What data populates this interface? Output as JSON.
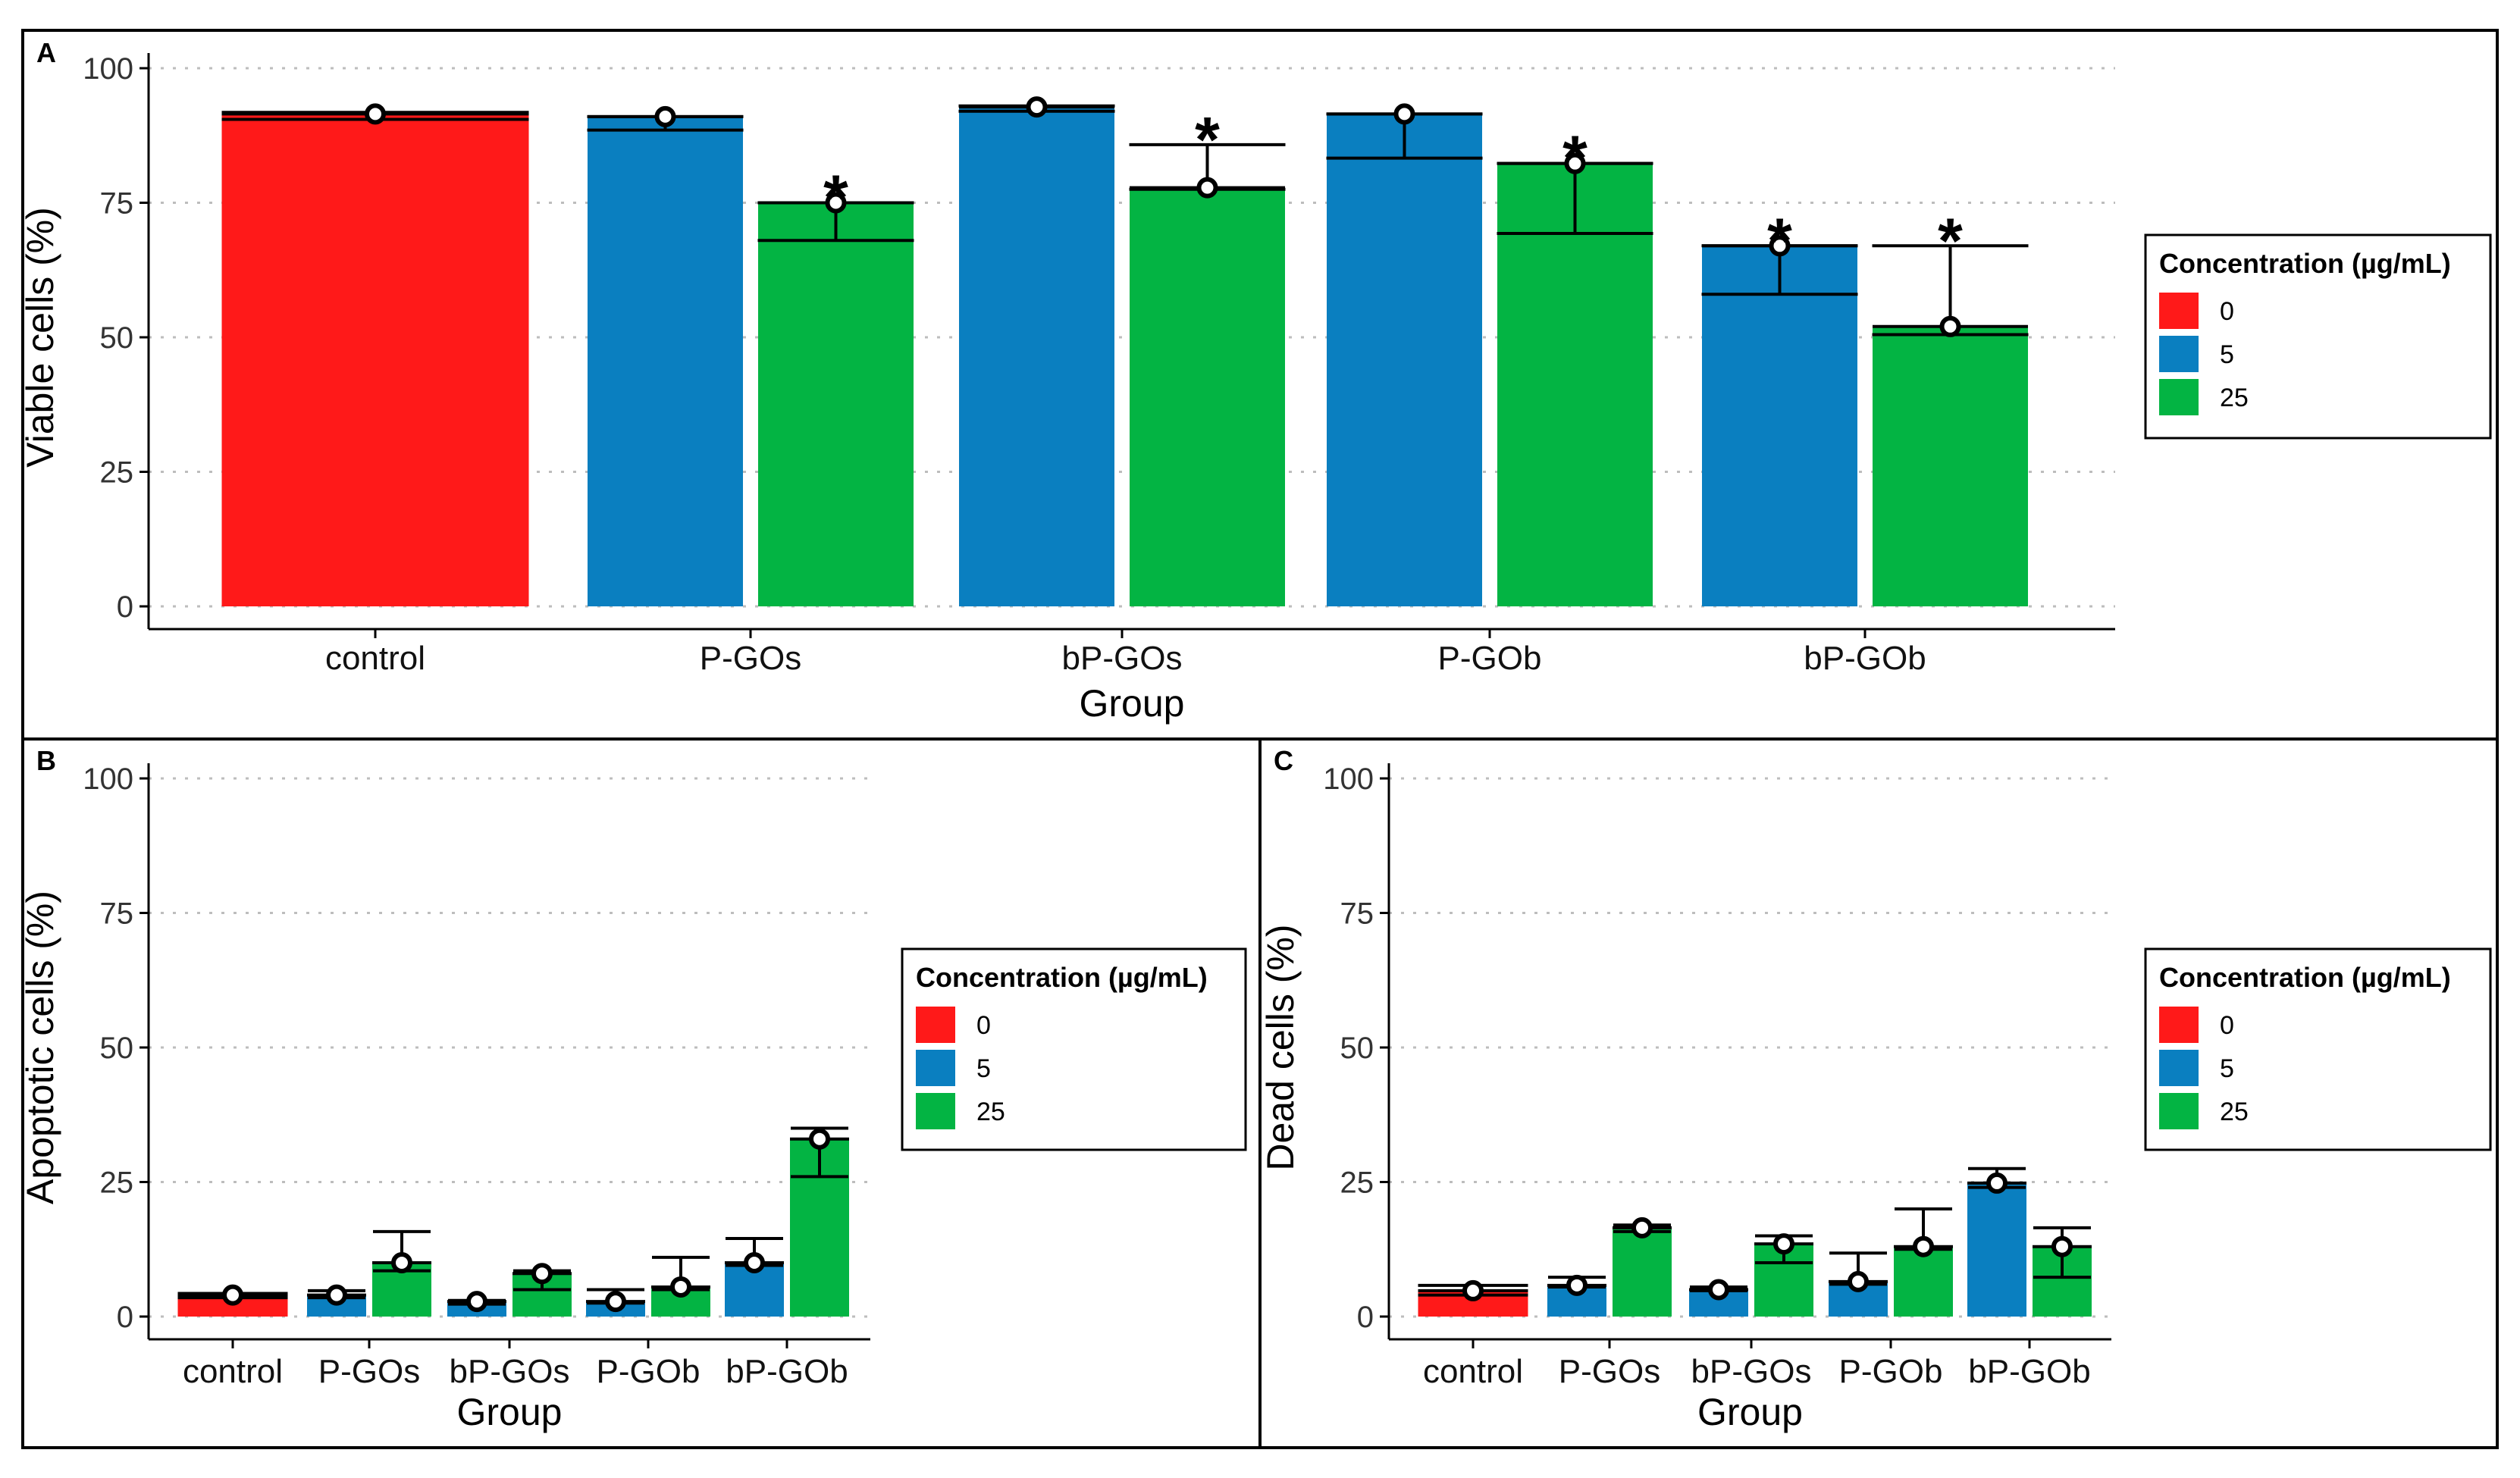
{
  "colors": {
    "0": "#ff1919",
    "5": "#0a7fc0",
    "25": "#03b443"
  },
  "chart_data": [
    {
      "panel": "A",
      "type": "bar",
      "xlabel": "Group",
      "ylabel": "Viable cells (%)",
      "ylim": [
        0,
        100
      ],
      "yticks": [
        0,
        25,
        50,
        75,
        100
      ],
      "grid": true,
      "legend_title": "Concentration (µg/mL)",
      "legend_entries": [
        "0",
        "5",
        "25"
      ],
      "legend_position": "right",
      "groups": [
        {
          "label": "control",
          "bars": [
            {
              "concentration": "0",
              "value": 91.5,
              "point": 91.5,
              "err_low": 90.5,
              "err_high": 91.8,
              "sig": ""
            }
          ]
        },
        {
          "label": "P-GOs",
          "bars": [
            {
              "concentration": "5",
              "value": 91,
              "point": 91,
              "err_low": 88.5,
              "err_high": 91,
              "sig": ""
            },
            {
              "concentration": "25",
              "value": 75,
              "point": 75,
              "err_low": 68,
              "err_high": 75,
              "sig": "*"
            }
          ]
        },
        {
          "label": "bP-GOs",
          "bars": [
            {
              "concentration": "5",
              "value": 92.8,
              "point": 92.8,
              "err_low": 92,
              "err_high": 93,
              "sig": ""
            },
            {
              "concentration": "25",
              "value": 77.8,
              "point": 77.8,
              "err_low": 77.5,
              "err_high": 85.8,
              "sig": "*"
            }
          ]
        },
        {
          "label": "P-GOb",
          "bars": [
            {
              "concentration": "5",
              "value": 91.5,
              "point": 91.5,
              "err_low": 83.3,
              "err_high": 91.5,
              "sig": ""
            },
            {
              "concentration": "25",
              "value": 82.3,
              "point": 82.3,
              "err_low": 69.3,
              "err_high": 82.3,
              "sig": "*"
            }
          ]
        },
        {
          "label": "bP-GOb",
          "bars": [
            {
              "concentration": "5",
              "value": 67,
              "point": 67,
              "err_low": 58,
              "err_high": 67,
              "sig": "*"
            },
            {
              "concentration": "25",
              "value": 52,
              "point": 52,
              "err_low": 50.5,
              "err_high": 67,
              "sig": "*"
            }
          ]
        }
      ]
    },
    {
      "panel": "B",
      "type": "bar",
      "xlabel": "Group",
      "ylabel": "Apoptotic cells (%)",
      "ylim": [
        0,
        100
      ],
      "yticks": [
        0,
        25,
        50,
        75,
        100
      ],
      "grid": true,
      "legend_title": "Concentration (µg/mL)",
      "legend_entries": [
        "0",
        "5",
        "25"
      ],
      "legend_position": "right",
      "groups": [
        {
          "label": "control",
          "bars": [
            {
              "concentration": "0",
              "value": 4,
              "point": 4,
              "err_low": 3.5,
              "err_high": 4.3
            }
          ]
        },
        {
          "label": "P-GOs",
          "bars": [
            {
              "concentration": "5",
              "value": 4,
              "point": 4,
              "err_low": 3.5,
              "err_high": 4.8
            },
            {
              "concentration": "25",
              "value": 10,
              "point": 10,
              "err_low": 8.5,
              "err_high": 15.8
            }
          ]
        },
        {
          "label": "bP-GOs",
          "bars": [
            {
              "concentration": "5",
              "value": 2.8,
              "point": 2.8,
              "err_low": 2.3,
              "err_high": 3
            },
            {
              "concentration": "25",
              "value": 8,
              "point": 8,
              "err_low": 5,
              "err_high": 8.5
            }
          ]
        },
        {
          "label": "P-GOb",
          "bars": [
            {
              "concentration": "5",
              "value": 2.8,
              "point": 2.8,
              "err_low": 2.5,
              "err_high": 5
            },
            {
              "concentration": "25",
              "value": 5.5,
              "point": 5.5,
              "err_low": 5,
              "err_high": 11
            }
          ]
        },
        {
          "label": "bP-GOb",
          "bars": [
            {
              "concentration": "5",
              "value": 10,
              "point": 10,
              "err_low": 9.5,
              "err_high": 14.5
            },
            {
              "concentration": "25",
              "value": 33,
              "point": 33,
              "err_low": 26,
              "err_high": 35
            }
          ]
        }
      ]
    },
    {
      "panel": "C",
      "type": "bar",
      "xlabel": "Group",
      "ylabel": "Dead cells (%)",
      "ylim": [
        0,
        100
      ],
      "yticks": [
        0,
        25,
        50,
        75,
        100
      ],
      "grid": true,
      "legend_title": "Concentration (µg/mL)",
      "legend_entries": [
        "0",
        "5",
        "25"
      ],
      "legend_position": "right",
      "groups": [
        {
          "label": "control",
          "bars": [
            {
              "concentration": "0",
              "value": 4.8,
              "point": 4.8,
              "err_low": 4,
              "err_high": 5.8
            }
          ]
        },
        {
          "label": "P-GOs",
          "bars": [
            {
              "concentration": "5",
              "value": 5.8,
              "point": 5.8,
              "err_low": 5.5,
              "err_high": 7.3
            },
            {
              "concentration": "25",
              "value": 16.5,
              "point": 16.5,
              "err_low": 15.8,
              "err_high": 17
            }
          ]
        },
        {
          "label": "bP-GOs",
          "bars": [
            {
              "concentration": "5",
              "value": 5,
              "point": 5,
              "err_low": 4.8,
              "err_high": 5.5
            },
            {
              "concentration": "25",
              "value": 13.5,
              "point": 13.5,
              "err_low": 10,
              "err_high": 15
            }
          ]
        },
        {
          "label": "P-GOb",
          "bars": [
            {
              "concentration": "5",
              "value": 6.5,
              "point": 6.5,
              "err_low": 6,
              "err_high": 11.8
            },
            {
              "concentration": "25",
              "value": 13,
              "point": 13,
              "err_low": 12.5,
              "err_high": 20
            }
          ]
        },
        {
          "label": "bP-GOb",
          "bars": [
            {
              "concentration": "5",
              "value": 24.8,
              "point": 24.8,
              "err_low": 24,
              "err_high": 27.5
            },
            {
              "concentration": "25",
              "value": 13,
              "point": 13,
              "err_low": 7.3,
              "err_high": 16.5
            }
          ]
        }
      ]
    }
  ]
}
